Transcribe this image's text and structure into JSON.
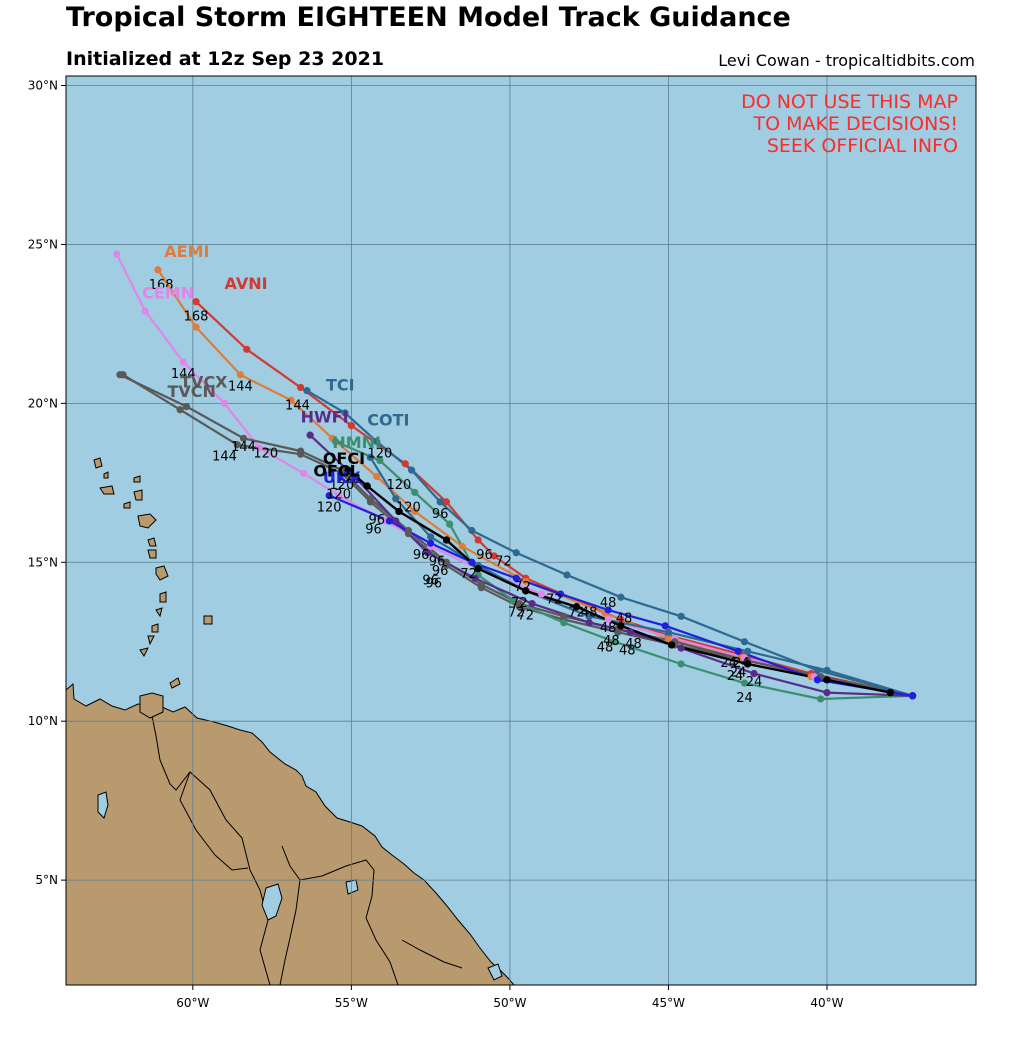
{
  "header": {
    "title": "Tropical Storm EIGHTEEN Model Track Guidance",
    "subtitle": "Initialized at 12z Sep 23 2021",
    "credit": "Levi Cowan - tropicaltidbits.com"
  },
  "warning": [
    "DO NOT USE THIS MAP",
    "TO MAKE DECISIONS!",
    "SEEK OFFICIAL INFO"
  ],
  "colors": {
    "ocean": "#a0cde1",
    "land": "#b99a6e",
    "grid": "#5f7f90",
    "warning": "#ff2a2a"
  },
  "axes": {
    "lon_range": [
      -64,
      -35.3
    ],
    "lat_range": [
      1.7,
      30.3
    ],
    "x_ticks": [
      {
        "v": -60,
        "label": "60°W"
      },
      {
        "v": -55,
        "label": "55°W"
      },
      {
        "v": -50,
        "label": "50°W"
      },
      {
        "v": -45,
        "label": "45°W"
      },
      {
        "v": -40,
        "label": "40°W"
      }
    ],
    "y_ticks": [
      {
        "v": 30,
        "label": "30°N"
      },
      {
        "v": 25,
        "label": "25°N"
      },
      {
        "v": 20,
        "label": "20°N"
      },
      {
        "v": 15,
        "label": "15°N"
      },
      {
        "v": 10,
        "label": "10°N"
      },
      {
        "v": 5,
        "label": "5°N"
      }
    ]
  },
  "chart_data": {
    "type": "map",
    "tracks": [
      {
        "name": "AVNI",
        "color": "#d03a32",
        "points": [
          [
            -37.3,
            10.8
          ],
          [
            -40.5,
            11.5
          ],
          [
            -42.7,
            12.1
          ],
          [
            -45,
            12.7
          ],
          [
            -46.5,
            13.2
          ],
          [
            -49.5,
            14.5
          ],
          [
            -50.5,
            15.2
          ],
          [
            -51,
            15.7
          ],
          [
            -52,
            16.9
          ],
          [
            -53.3,
            18.1
          ],
          [
            -55,
            19.3
          ],
          [
            -56.6,
            20.5
          ],
          [
            -58.3,
            21.7
          ],
          [
            -59.9,
            23.2
          ]
        ],
        "labels": [
          {
            "t": "120",
            "lon": -54.1,
            "lat": 18.3
          },
          {
            "t": "168",
            "lon": -59.9,
            "lat": 22.6
          }
        ],
        "name_pos": [
          -59,
          23.6
        ]
      },
      {
        "name": "AEMI",
        "color": "#e07b39",
        "points": [
          [
            -37.3,
            10.8
          ],
          [
            -40.5,
            11.4
          ],
          [
            -42.7,
            12
          ],
          [
            -45,
            12.6
          ],
          [
            -47,
            13.4
          ],
          [
            -49.5,
            14.4
          ],
          [
            -51.5,
            15.5
          ],
          [
            -53,
            16.6
          ],
          [
            -54.2,
            17.7
          ],
          [
            -55.6,
            18.9
          ],
          [
            -56.9,
            20.1
          ],
          [
            -58.5,
            20.9
          ],
          [
            -59.9,
            22.4
          ],
          [
            -61.1,
            24.2
          ]
        ],
        "labels": [
          {
            "t": "144",
            "lon": -58.5,
            "lat": 20.4
          },
          {
            "t": "168",
            "lon": -61,
            "lat": 23.6
          }
        ],
        "name_pos": [
          -60.9,
          24.6
        ]
      },
      {
        "name": "CEMN",
        "color": "#e086e6",
        "points": [
          [
            -37.3,
            10.8
          ],
          [
            -40.4,
            11.4
          ],
          [
            -42.6,
            12
          ],
          [
            -44.8,
            12.6
          ],
          [
            -46.9,
            13.2
          ],
          [
            -49,
            14
          ],
          [
            -51,
            14.8
          ],
          [
            -52.5,
            15.5
          ],
          [
            -53.9,
            16.3
          ],
          [
            -55.4,
            17.1
          ],
          [
            -56.5,
            17.8
          ],
          [
            -57.9,
            18.6
          ],
          [
            -59,
            20
          ],
          [
            -60.3,
            21.3
          ],
          [
            -61.5,
            22.9
          ],
          [
            -62.4,
            24.7
          ]
        ],
        "labels": [
          {
            "t": "144",
            "lon": -60.3,
            "lat": 20.8
          }
        ],
        "name_pos": [
          -61.6,
          23.3
        ]
      },
      {
        "name": "TVCN",
        "color": "#595959",
        "points": [
          [
            -37.3,
            10.8
          ],
          [
            -40.2,
            11.4
          ],
          [
            -42.5,
            11.9
          ],
          [
            -44.8,
            12.5
          ],
          [
            -46.6,
            12.9
          ],
          [
            -48.3,
            13.3
          ],
          [
            -49.7,
            13.7
          ],
          [
            -50.9,
            14.3
          ],
          [
            -52,
            15
          ],
          [
            -53.2,
            16
          ],
          [
            -54.4,
            17
          ],
          [
            -55.3,
            17.9
          ],
          [
            -56.6,
            18.5
          ],
          [
            -58.4,
            18.9
          ],
          [
            -60.2,
            19.9
          ],
          [
            -62.3,
            20.9
          ]
        ],
        "labels": [
          {
            "t": "120",
            "lon": -57.7,
            "lat": 18.3
          },
          {
            "t": "144",
            "lon": -58.4,
            "lat": 18.5
          }
        ],
        "name_pos": [
          -60.8,
          20.2
        ]
      },
      {
        "name": "TVCX",
        "color": "#595959",
        "points": [
          [
            -37.3,
            10.8
          ],
          [
            -40.2,
            11.4
          ],
          [
            -42.5,
            11.9
          ],
          [
            -44.8,
            12.4
          ],
          [
            -46.6,
            12.8
          ],
          [
            -48.3,
            13.2
          ],
          [
            -49.7,
            13.6
          ],
          [
            -50.9,
            14.2
          ],
          [
            -52,
            14.9
          ],
          [
            -53.2,
            15.9
          ],
          [
            -54.4,
            16.9
          ],
          [
            -55.3,
            17.8
          ],
          [
            -56.6,
            18.4
          ],
          [
            -58.6,
            18.7
          ],
          [
            -60.4,
            19.8
          ],
          [
            -62.2,
            20.9
          ]
        ],
        "labels": [
          {
            "t": "144",
            "lon": -59,
            "lat": 18.2
          }
        ],
        "name_pos": [
          -60.4,
          20.5
        ]
      },
      {
        "name": "TCI",
        "color": "#2d6a91",
        "points": [
          [
            -37.3,
            10.8
          ],
          [
            -40.3,
            11.6
          ],
          [
            -42.6,
            12.5
          ],
          [
            -44.6,
            13.3
          ],
          [
            -46.5,
            13.9
          ],
          [
            -48.2,
            14.6
          ],
          [
            -49.8,
            15.3
          ],
          [
            -51.2,
            16
          ],
          [
            -52.2,
            16.9
          ],
          [
            -53.1,
            17.9
          ],
          [
            -54.2,
            18.8
          ],
          [
            -55.2,
            19.7
          ],
          [
            -56.4,
            20.4
          ]
        ],
        "labels": [
          {
            "t": "144",
            "lon": -56.7,
            "lat": 19.8
          }
        ],
        "name_pos": [
          -55.8,
          20.4
        ]
      },
      {
        "name": "COTI",
        "color": "#2d6a91",
        "points": [
          [
            -37.3,
            10.8
          ],
          [
            -40,
            11.6
          ],
          [
            -42.5,
            12.2
          ],
          [
            -45,
            12.8
          ],
          [
            -47.5,
            13.3
          ],
          [
            -49.5,
            14.1
          ],
          [
            -51,
            14.9
          ],
          [
            -52.5,
            15.8
          ],
          [
            -53.6,
            17
          ],
          [
            -54.4,
            18.3
          ]
        ],
        "labels": [],
        "name_pos": [
          -54.5,
          19.3
        ]
      },
      {
        "name": "HMNI",
        "color": "#3b8f6f",
        "points": [
          [
            -37.3,
            10.8
          ],
          [
            -40.2,
            10.7
          ],
          [
            -42.6,
            11.2
          ],
          [
            -44.6,
            11.8
          ],
          [
            -46.7,
            12.5
          ],
          [
            -48.3,
            13.1
          ],
          [
            -49.9,
            13.8
          ],
          [
            -51,
            14.6
          ],
          [
            -51.9,
            16.2
          ],
          [
            -53,
            17.2
          ],
          [
            -54.1,
            18.2
          ],
          [
            -55.5,
            18.8
          ]
        ],
        "labels": [
          {
            "t": "96",
            "lon": -52.2,
            "lat": 16.4
          },
          {
            "t": "120",
            "lon": -53.5,
            "lat": 17.3
          },
          {
            "t": "24",
            "lon": -42.6,
            "lat": 10.6
          },
          {
            "t": "24",
            "lon": -42.3,
            "lat": 11.1
          }
        ],
        "name_pos": [
          -55.6,
          18.6
        ]
      },
      {
        "name": "HWFI",
        "color": "#5a2c8a",
        "points": [
          [
            -37.3,
            10.8
          ],
          [
            -40,
            10.9
          ],
          [
            -42.3,
            11.5
          ],
          [
            -44.6,
            12.3
          ],
          [
            -46.2,
            12.8
          ],
          [
            -47.5,
            13.1
          ],
          [
            -49.3,
            13.7
          ],
          [
            -51.1,
            14.5
          ],
          [
            -52.6,
            15.3
          ],
          [
            -53.6,
            16.3
          ],
          [
            -54.9,
            17.7
          ],
          [
            -56.3,
            19
          ]
        ],
        "labels": [
          {
            "t": "96",
            "lon": -54.3,
            "lat": 15.9
          }
        ],
        "name_pos": [
          -56.6,
          19.4
        ]
      },
      {
        "name": "UKX",
        "color": "#1f1fe0",
        "points": [
          [
            -37.3,
            10.8
          ],
          [
            -40.3,
            11.3
          ],
          [
            -42.8,
            12.2
          ],
          [
            -45.1,
            13
          ],
          [
            -46.9,
            13.5
          ],
          [
            -48.4,
            14
          ],
          [
            -49.8,
            14.5
          ],
          [
            -51.2,
            15
          ],
          [
            -52.5,
            15.6
          ],
          [
            -53.8,
            16.3
          ],
          [
            -55.7,
            17.1
          ]
        ],
        "labels": [
          {
            "t": "96",
            "lon": -50.8,
            "lat": 15.1
          },
          {
            "t": "120",
            "lon": -55.7,
            "lat": 16.6
          }
        ],
        "name_pos": [
          -55.9,
          17.5
        ]
      },
      {
        "name": "OFCI",
        "color": "#000000",
        "points": [
          [
            -38,
            10.9
          ],
          [
            -40,
            11.3
          ],
          [
            -42.5,
            11.8
          ],
          [
            -44.9,
            12.4
          ],
          [
            -46.5,
            13
          ],
          [
            -47.9,
            13.6
          ],
          [
            -49.5,
            14.1
          ],
          [
            -51,
            14.8
          ],
          [
            -52,
            15.7
          ],
          [
            -53.5,
            16.6
          ],
          [
            -54.5,
            17.4
          ],
          [
            -55.1,
            17.9
          ]
        ],
        "labels": [
          {
            "t": "120",
            "lon": -53.2,
            "lat": 16.6
          }
        ],
        "name_pos": [
          -55.9,
          18.1
        ]
      },
      {
        "name": "OFCL",
        "color": "#000000",
        "points": [
          [
            -38,
            10.9
          ],
          [
            -40,
            11.3
          ],
          [
            -42.5,
            11.8
          ],
          [
            -44.9,
            12.4
          ],
          [
            -46.5,
            13
          ],
          [
            -47.9,
            13.6
          ],
          [
            -49.5,
            14.1
          ],
          [
            -51,
            14.8
          ],
          [
            -52,
            15.7
          ],
          [
            -53.5,
            16.6
          ],
          [
            -54.5,
            17.4
          ],
          [
            -55.1,
            17.9
          ]
        ],
        "labels": [],
        "name_pos": [
          -56.2,
          17.7
        ]
      }
    ],
    "extra_labels": [
      {
        "t": "72",
        "lon": -50.2,
        "lat": 14.9
      },
      {
        "t": "72",
        "lon": -49.6,
        "lat": 14.1
      },
      {
        "t": "72",
        "lon": -48.6,
        "lat": 13.7
      },
      {
        "t": "72",
        "lon": -49.8,
        "lat": 13.3
      },
      {
        "t": "72",
        "lon": -49.5,
        "lat": 13.2
      },
      {
        "t": "72",
        "lon": -51.3,
        "lat": 14.5
      },
      {
        "t": "72",
        "lon": -47.9,
        "lat": 13.3
      },
      {
        "t": "72",
        "lon": -49.7,
        "lat": 13.6
      },
      {
        "t": "96",
        "lon": -52.8,
        "lat": 15.1
      },
      {
        "t": "96",
        "lon": -52.2,
        "lat": 14.6
      },
      {
        "t": "96",
        "lon": -52.5,
        "lat": 14.3
      },
      {
        "t": "96",
        "lon": -52.3,
        "lat": 14.9
      },
      {
        "t": "96",
        "lon": -52.4,
        "lat": 14.2
      },
      {
        "t": "48",
        "lon": -46.9,
        "lat": 13.6
      },
      {
        "t": "48",
        "lon": -46.4,
        "lat": 13.1
      },
      {
        "t": "48",
        "lon": -46.9,
        "lat": 12.8
      },
      {
        "t": "48",
        "lon": -47.5,
        "lat": 13.3
      },
      {
        "t": "48",
        "lon": -46.8,
        "lat": 12.4
      },
      {
        "t": "48",
        "lon": -46.3,
        "lat": 12.1
      },
      {
        "t": "48",
        "lon": -46.1,
        "lat": 12.3
      },
      {
        "t": "48",
        "lon": -47,
        "lat": 12.2
      },
      {
        "t": "24",
        "lon": -42.7,
        "lat": 11.7
      },
      {
        "t": "24",
        "lon": -42.8,
        "lat": 11.4
      },
      {
        "t": "24",
        "lon": -43.1,
        "lat": 11.7
      },
      {
        "t": "24",
        "lon": -42.9,
        "lat": 11.3
      },
      {
        "t": "120",
        "lon": -55.1,
        "lat": 17.5
      },
      {
        "t": "120",
        "lon": -55.3,
        "lat": 17.3
      },
      {
        "t": "120",
        "lon": -55.4,
        "lat": 17
      },
      {
        "t": "96",
        "lon": -54.2,
        "lat": 16.2
      }
    ]
  }
}
